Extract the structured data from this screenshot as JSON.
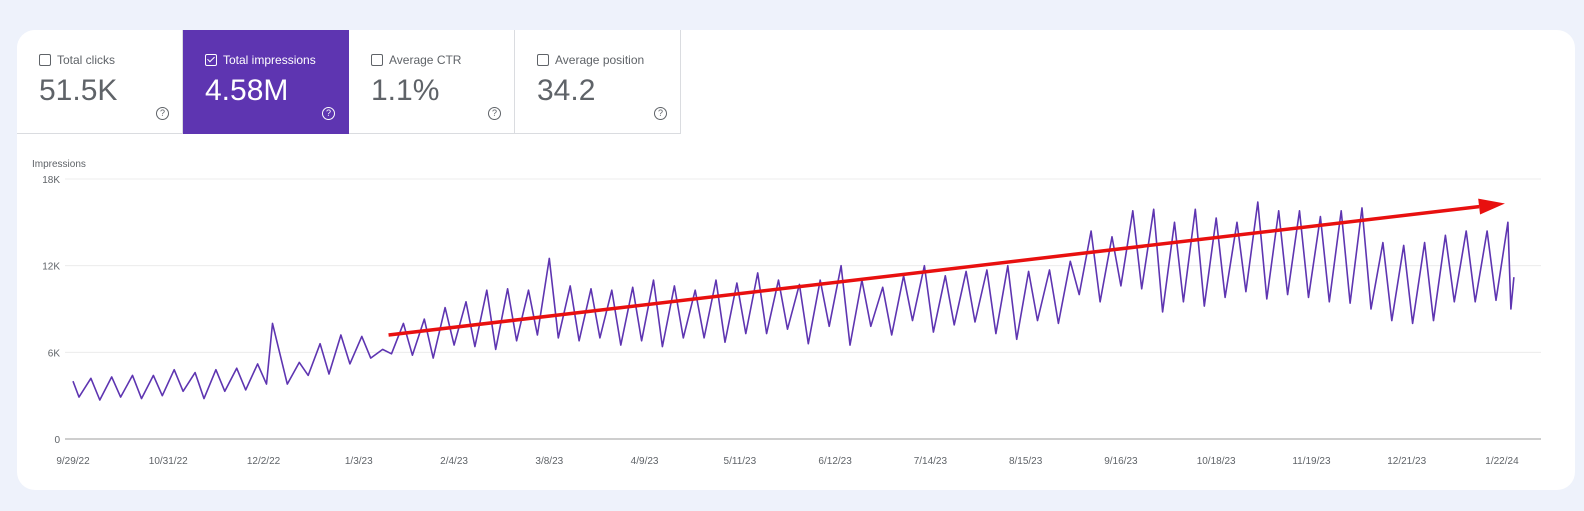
{
  "metrics": [
    {
      "label": "Total clicks",
      "value": "51.5K",
      "checked": false
    },
    {
      "label": "Total impressions",
      "value": "4.58M",
      "checked": true
    },
    {
      "label": "Average CTR",
      "value": "1.1%",
      "checked": false
    },
    {
      "label": "Average position",
      "value": "34.2",
      "checked": false
    }
  ],
  "help_icon": "?",
  "colors": {
    "accent": "#5e35b1",
    "line": "#5e35b1",
    "arrow": "#e8100f"
  },
  "chart_data": {
    "type": "line",
    "ylabel": "Impressions",
    "ylim": [
      0,
      18000
    ],
    "yticks": [
      "0",
      "6K",
      "12K",
      "18K"
    ],
    "ytick_values": [
      0,
      6000,
      12000,
      18000
    ],
    "xlim": [
      "9/29/22",
      "1/26/24"
    ],
    "xticks": [
      "9/29/22",
      "10/31/22",
      "12/2/22",
      "1/3/23",
      "2/4/23",
      "3/8/23",
      "4/9/23",
      "5/11/23",
      "6/12/23",
      "7/14/23",
      "8/15/23",
      "9/16/23",
      "10/18/23",
      "11/19/23",
      "12/21/23",
      "1/22/24"
    ],
    "grid": true,
    "series": [
      {
        "points": [
          [
            "9/29/22",
            4000
          ],
          [
            "10/1/22",
            2900
          ],
          [
            "10/5/22",
            4200
          ],
          [
            "10/8/22",
            2700
          ],
          [
            "10/12/22",
            4300
          ],
          [
            "10/15/22",
            2900
          ],
          [
            "10/19/22",
            4400
          ],
          [
            "10/22/22",
            2800
          ],
          [
            "10/26/22",
            4400
          ],
          [
            "10/29/22",
            3000
          ],
          [
            "11/2/22",
            4800
          ],
          [
            "11/5/22",
            3300
          ],
          [
            "11/9/22",
            4600
          ],
          [
            "11/12/22",
            2800
          ],
          [
            "11/16/22",
            4800
          ],
          [
            "11/19/22",
            3300
          ],
          [
            "11/23/22",
            4900
          ],
          [
            "11/26/22",
            3400
          ],
          [
            "11/30/22",
            5200
          ],
          [
            "12/3/22",
            3800
          ],
          [
            "12/5/22",
            8000
          ],
          [
            "12/10/22",
            3800
          ],
          [
            "12/14/22",
            5300
          ],
          [
            "12/17/22",
            4400
          ],
          [
            "12/21/22",
            6600
          ],
          [
            "12/24/22",
            4500
          ],
          [
            "12/28/22",
            7200
          ],
          [
            "12/31/22",
            5200
          ],
          [
            "1/4/23",
            7100
          ],
          [
            "1/7/23",
            5600
          ],
          [
            "1/11/23",
            6200
          ],
          [
            "1/14/23",
            5900
          ],
          [
            "1/18/23",
            8000
          ],
          [
            "1/21/23",
            5800
          ],
          [
            "1/25/23",
            8300
          ],
          [
            "1/28/23",
            5600
          ],
          [
            "2/1/23",
            9100
          ],
          [
            "2/4/23",
            6500
          ],
          [
            "2/8/23",
            9500
          ],
          [
            "2/11/23",
            6400
          ],
          [
            "2/15/23",
            10300
          ],
          [
            "2/18/23",
            6200
          ],
          [
            "2/22/23",
            10400
          ],
          [
            "2/25/23",
            6800
          ],
          [
            "3/1/23",
            10300
          ],
          [
            "3/4/23",
            7200
          ],
          [
            "3/8/23",
            12500
          ],
          [
            "3/11/23",
            7000
          ],
          [
            "3/15/23",
            10600
          ],
          [
            "3/18/23",
            6800
          ],
          [
            "3/22/23",
            10400
          ],
          [
            "3/25/23",
            7000
          ],
          [
            "3/29/23",
            10300
          ],
          [
            "4/1/23",
            6500
          ],
          [
            "4/5/23",
            10500
          ],
          [
            "4/8/23",
            6800
          ],
          [
            "4/12/23",
            11000
          ],
          [
            "4/15/23",
            6400
          ],
          [
            "4/19/23",
            10600
          ],
          [
            "4/22/23",
            7000
          ],
          [
            "4/26/23",
            10300
          ],
          [
            "4/29/23",
            7000
          ],
          [
            "5/3/23",
            11000
          ],
          [
            "5/6/23",
            6700
          ],
          [
            "5/10/23",
            10800
          ],
          [
            "5/13/23",
            7300
          ],
          [
            "5/17/23",
            11500
          ],
          [
            "5/20/23",
            7300
          ],
          [
            "5/24/23",
            11000
          ],
          [
            "5/27/23",
            7600
          ],
          [
            "5/31/23",
            10700
          ],
          [
            "6/3/23",
            6600
          ],
          [
            "6/7/23",
            11000
          ],
          [
            "6/10/23",
            7800
          ],
          [
            "6/14/23",
            12000
          ],
          [
            "6/17/23",
            6500
          ],
          [
            "6/21/23",
            11000
          ],
          [
            "6/24/23",
            7800
          ],
          [
            "6/28/23",
            10500
          ],
          [
            "7/1/23",
            7200
          ],
          [
            "7/5/23",
            11300
          ],
          [
            "7/8/23",
            8200
          ],
          [
            "7/12/23",
            12000
          ],
          [
            "7/15/23",
            7400
          ],
          [
            "7/19/23",
            11300
          ],
          [
            "7/22/23",
            7900
          ],
          [
            "7/26/23",
            11600
          ],
          [
            "7/29/23",
            8100
          ],
          [
            "8/2/23",
            11700
          ],
          [
            "8/5/23",
            7300
          ],
          [
            "8/9/23",
            12000
          ],
          [
            "8/12/23",
            6900
          ],
          [
            "8/16/23",
            11600
          ],
          [
            "8/19/23",
            8200
          ],
          [
            "8/23/23",
            11700
          ],
          [
            "8/26/23",
            8000
          ],
          [
            "8/30/23",
            12300
          ],
          [
            "9/2/23",
            10000
          ],
          [
            "9/6/23",
            14400
          ],
          [
            "9/9/23",
            9500
          ],
          [
            "9/13/23",
            14000
          ],
          [
            "9/16/23",
            10600
          ],
          [
            "9/20/23",
            15800
          ],
          [
            "9/23/23",
            10400
          ],
          [
            "9/27/23",
            15900
          ],
          [
            "9/30/23",
            8800
          ],
          [
            "10/4/23",
            15000
          ],
          [
            "10/7/23",
            9500
          ],
          [
            "10/11/23",
            15900
          ],
          [
            "10/14/23",
            9200
          ],
          [
            "10/18/23",
            15300
          ],
          [
            "10/21/23",
            9800
          ],
          [
            "10/25/23",
            15000
          ],
          [
            "10/28/23",
            10200
          ],
          [
            "11/1/23",
            16400
          ],
          [
            "11/4/23",
            9700
          ],
          [
            "11/8/23",
            15800
          ],
          [
            "11/11/23",
            10000
          ],
          [
            "11/15/23",
            15800
          ],
          [
            "11/18/23",
            9800
          ],
          [
            "11/22/23",
            15400
          ],
          [
            "11/25/23",
            9500
          ],
          [
            "11/29/23",
            15800
          ],
          [
            "12/2/23",
            9400
          ],
          [
            "12/6/23",
            16000
          ],
          [
            "12/9/23",
            9000
          ],
          [
            "12/13/23",
            13600
          ],
          [
            "12/16/23",
            8200
          ],
          [
            "12/20/23",
            13400
          ],
          [
            "12/23/23",
            8000
          ],
          [
            "12/27/23",
            13600
          ],
          [
            "12/30/23",
            8200
          ],
          [
            "1/3/24",
            14100
          ],
          [
            "1/6/24",
            9500
          ],
          [
            "1/10/24",
            14400
          ],
          [
            "1/13/24",
            9500
          ],
          [
            "1/17/24",
            14400
          ],
          [
            "1/20/24",
            9600
          ],
          [
            "1/24/24",
            15000
          ],
          [
            "1/25/24",
            9000
          ],
          [
            "1/26/24",
            11200
          ]
        ]
      }
    ],
    "annotation_arrow": {
      "from": [
        "1/13/23",
        7200
      ],
      "to": [
        "1/23/24",
        16300
      ]
    }
  }
}
